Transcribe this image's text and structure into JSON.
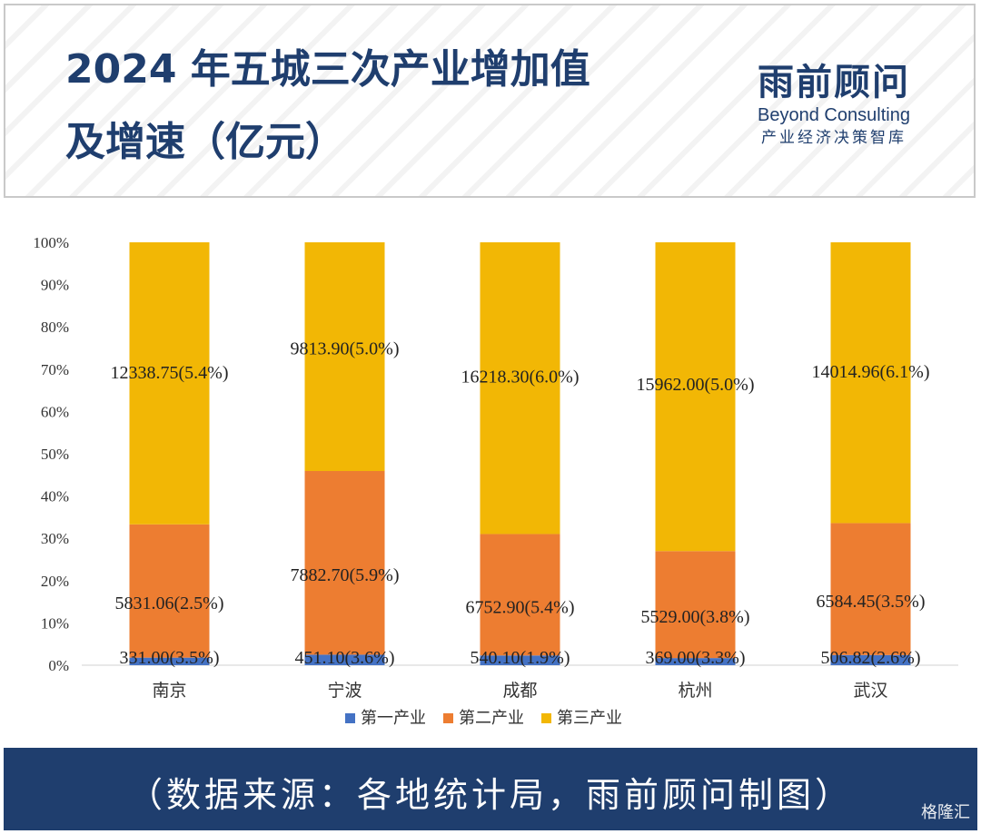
{
  "header": {
    "title_line1": "2024 年五城三次产业增加值",
    "title_line2": "及增速（亿元）"
  },
  "brand": {
    "name_cn": "雨前顾问",
    "name_en": "Beyond Consulting",
    "tagline": "产业经济决策智库"
  },
  "footer": {
    "source": "（数据来源：各地统计局，雨前顾问制图）",
    "watermark": "格隆汇"
  },
  "colors": {
    "primary": "#4472c4",
    "secondary": "#ed7d31",
    "tertiary": "#f2b705",
    "brand_blue": "#1f3e6e"
  },
  "chart_data": {
    "type": "bar",
    "stacked": "percent",
    "categories": [
      "南京",
      "宁波",
      "成都",
      "杭州",
      "武汉"
    ],
    "yticks": [
      "0%",
      "10%",
      "20%",
      "30%",
      "40%",
      "50%",
      "60%",
      "70%",
      "80%",
      "90%",
      "100%"
    ],
    "ylim": [
      0,
      100
    ],
    "legend_position": "bottom",
    "series": [
      {
        "name": "第一产业",
        "values": [
          331.0,
          451.1,
          540.1,
          369.0,
          506.82
        ],
        "labels": [
          "331.00(3.5%)",
          "451.10(3.6%)",
          "540.10(1.9%)",
          "369.00(3.3%)",
          "506.82(2.6%)"
        ]
      },
      {
        "name": "第二产业",
        "values": [
          5831.06,
          7882.7,
          6752.9,
          5529.0,
          6584.45
        ],
        "labels": [
          "5831.06(2.5%)",
          "7882.70(5.9%)",
          "6752.90(5.4%)",
          "5529.00(3.8%)",
          "6584.45(3.5%)"
        ]
      },
      {
        "name": "第三产业",
        "values": [
          12338.75,
          9813.9,
          16218.3,
          15962.0,
          14014.96
        ],
        "labels": [
          "12338.75(5.4%)",
          "9813.90(5.0%)",
          "16218.30(6.0%)",
          "15962.00(5.0%)",
          "14014.96(6.1%)"
        ]
      }
    ]
  }
}
